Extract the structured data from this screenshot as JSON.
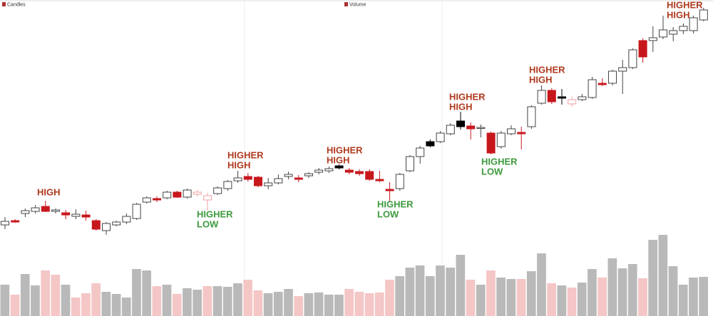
{
  "chart_data": {
    "type": "candlestick",
    "title": "Candles",
    "ylim": [
      0,
      444
    ],
    "open": [
      128,
      134,
      144,
      147,
      154,
      147,
      145,
      140,
      142,
      134,
      120,
      128,
      132,
      137,
      160,
      165,
      166,
      174,
      167,
      171,
      163,
      172,
      179,
      190,
      196,
      195,
      183,
      187,
      196,
      194,
      197,
      202,
      204,
      211,
      205,
      203,
      203,
      192,
      178,
      179,
      204,
      224,
      245,
      245,
      256,
      274,
      267,
      264,
      257,
      238,
      256,
      258,
      266,
      299,
      317,
      308,
      298,
      304,
      307,
      327,
      327,
      344,
      349,
      387,
      387,
      392,
      396,
      401,
      401,
      416
    ],
    "high": [
      139,
      136,
      151,
      156,
      162,
      151,
      149,
      150,
      148,
      136,
      132,
      134,
      144,
      159,
      168,
      168,
      176,
      176,
      179,
      177,
      173,
      182,
      191,
      204,
      201,
      197,
      194,
      199,
      203,
      198,
      202,
      208,
      210,
      213,
      208,
      206,
      206,
      204,
      188,
      201,
      226,
      239,
      248,
      260,
      271,
      287,
      272,
      269,
      259,
      260,
      268,
      266,
      296,
      324,
      320,
      319,
      308,
      312,
      336,
      334,
      346,
      360,
      376,
      390,
      407,
      422,
      406,
      411,
      422,
      433
    ],
    "low": [
      122,
      131,
      139,
      144,
      146,
      144,
      136,
      136,
      134,
      120,
      114,
      126,
      129,
      135,
      158,
      160,
      164,
      166,
      165,
      168,
      148,
      170,
      176,
      187,
      189,
      181,
      178,
      185,
      192,
      188,
      194,
      199,
      201,
      206,
      199,
      197,
      190,
      188,
      161,
      176,
      202,
      214,
      237,
      243,
      254,
      262,
      248,
      251,
      227,
      235,
      254,
      234,
      263,
      297,
      298,
      297,
      294,
      302,
      305,
      323,
      324,
      312,
      347,
      356,
      371,
      389,
      386,
      396,
      397,
      414
    ],
    "close": [
      133,
      132,
      148,
      152,
      147,
      149,
      142,
      143,
      139,
      122,
      130,
      132,
      140,
      157,
      166,
      163,
      174,
      167,
      177,
      174,
      169,
      180,
      189,
      194,
      192,
      183,
      187,
      193,
      199,
      192,
      200,
      205,
      207,
      208,
      202,
      200,
      192,
      190,
      176,
      199,
      224,
      236,
      239,
      257,
      268,
      266,
      263,
      265,
      229,
      257,
      263,
      256,
      294,
      317,
      301,
      306,
      304,
      308,
      332,
      325,
      344,
      349,
      374,
      364,
      391,
      402,
      401,
      407,
      419,
      430
    ],
    "colors": [
      "#ffffff",
      "#c8161d",
      "#ffffff",
      "#ffffff",
      "#c8161d",
      "#ffffff",
      "#c8161d",
      "#ffffff",
      "#c8161d",
      "#c8161d",
      "#ffffff",
      "#ffffff",
      "#ffffff",
      "#ffffff",
      "#ffffff",
      "#c8161d",
      "#ffffff",
      "#c8161d",
      "#ffffff",
      "#f2a0a0",
      "#f2a0a0",
      "#ffffff",
      "#ffffff",
      "#ffffff",
      "#c8161d",
      "#c8161d",
      "#ffffff",
      "#ffffff",
      "#ffffff",
      "#c8161d",
      "#ffffff",
      "#ffffff",
      "#ffffff",
      "#000000",
      "#c8161d",
      "#c8161d",
      "#c8161d",
      "#c8161d",
      "#c8161d",
      "#ffffff",
      "#ffffff",
      "#ffffff",
      "#000000",
      "#ffffff",
      "#ffffff",
      "#000000",
      "#c8161d",
      "#ffffff",
      "#c8161d",
      "#ffffff",
      "#ffffff",
      "#c8161d",
      "#ffffff",
      "#ffffff",
      "#c8161d",
      "#000000",
      "#f2a0a0",
      "#ffffff",
      "#ffffff",
      "#c8161d",
      "#ffffff",
      "#ffffff",
      "#ffffff",
      "#c8161d",
      "#ffffff",
      "#ffffff",
      "#ffffff",
      "#ffffff",
      "#ffffff",
      "#ffffff"
    ],
    "volume": {
      "title": "Volume",
      "ylim": [
        0,
        120
      ],
      "values": [
        44,
        30,
        59,
        43,
        64,
        58,
        44,
        26,
        32,
        46,
        34,
        31,
        26,
        66,
        64,
        42,
        44,
        31,
        39,
        37,
        42,
        42,
        41,
        46,
        51,
        36,
        32,
        34,
        38,
        28,
        32,
        33,
        30,
        30,
        38,
        34,
        32,
        33,
        51,
        56,
        68,
        71,
        56,
        71,
        68,
        86,
        51,
        44,
        64,
        54,
        52,
        52,
        63,
        88,
        46,
        43,
        40,
        47,
        66,
        54,
        81,
        67,
        73,
        53,
        107,
        114,
        70,
        44,
        54,
        55
      ],
      "colors": [
        "#b9b9b9",
        "#f4c6c6",
        "#b9b9b9",
        "#b9b9b9",
        "#f4c6c6",
        "#f4c6c6",
        "#b9b9b9",
        "#f4c6c6",
        "#f4c6c6",
        "#f4c6c6",
        "#b9b9b9",
        "#b9b9b9",
        "#b9b9b9",
        "#b9b9b9",
        "#b9b9b9",
        "#f4c6c6",
        "#b9b9b9",
        "#f4c6c6",
        "#b9b9b9",
        "#b9b9b9",
        "#f4c6c6",
        "#b9b9b9",
        "#b9b9b9",
        "#b9b9b9",
        "#f4c6c6",
        "#f4c6c6",
        "#b9b9b9",
        "#b9b9b9",
        "#b9b9b9",
        "#f4c6c6",
        "#b9b9b9",
        "#b9b9b9",
        "#b9b9b9",
        "#b9b9b9",
        "#f4c6c6",
        "#f4c6c6",
        "#f4c6c6",
        "#f4c6c6",
        "#f4c6c6",
        "#b9b9b9",
        "#b9b9b9",
        "#b9b9b9",
        "#b9b9b9",
        "#b9b9b9",
        "#b9b9b9",
        "#b9b9b9",
        "#f4c6c6",
        "#b9b9b9",
        "#f4c6c6",
        "#b9b9b9",
        "#b9b9b9",
        "#f4c6c6",
        "#b9b9b9",
        "#b9b9b9",
        "#f4c6c6",
        "#b9b9b9",
        "#f4c6c6",
        "#b9b9b9",
        "#b9b9b9",
        "#f4c6c6",
        "#b9b9b9",
        "#b9b9b9",
        "#b9b9b9",
        "#f4c6c6",
        "#b9b9b9",
        "#b9b9b9",
        "#b9b9b9",
        "#b9b9b9",
        "#b9b9b9",
        "#b9b9b9"
      ]
    },
    "annotations": [
      {
        "lines": [
          "HIGH"
        ],
        "color": "#b03a1e"
      },
      {
        "lines": [
          "HIGHER",
          "LOW"
        ],
        "color": "#3d9a3d"
      },
      {
        "lines": [
          "HIGHER",
          "HIGH"
        ],
        "color": "#b03a1e"
      },
      {
        "lines": [
          "HIGHER",
          "HIGH"
        ],
        "color": "#b03a1e"
      },
      {
        "lines": [
          "HIGHER",
          "LOW"
        ],
        "color": "#3d9a3d"
      },
      {
        "lines": [
          "HIGHER",
          "HIGH"
        ],
        "color": "#b03a1e"
      },
      {
        "lines": [
          "HIGHER",
          "LOW"
        ],
        "color": "#3d9a3d"
      },
      {
        "lines": [
          "HIGHER",
          "HIGH"
        ],
        "color": "#b03a1e"
      },
      {
        "lines": [
          "HIGHER",
          "HIGH"
        ],
        "color": "#b03a1e"
      }
    ]
  }
}
